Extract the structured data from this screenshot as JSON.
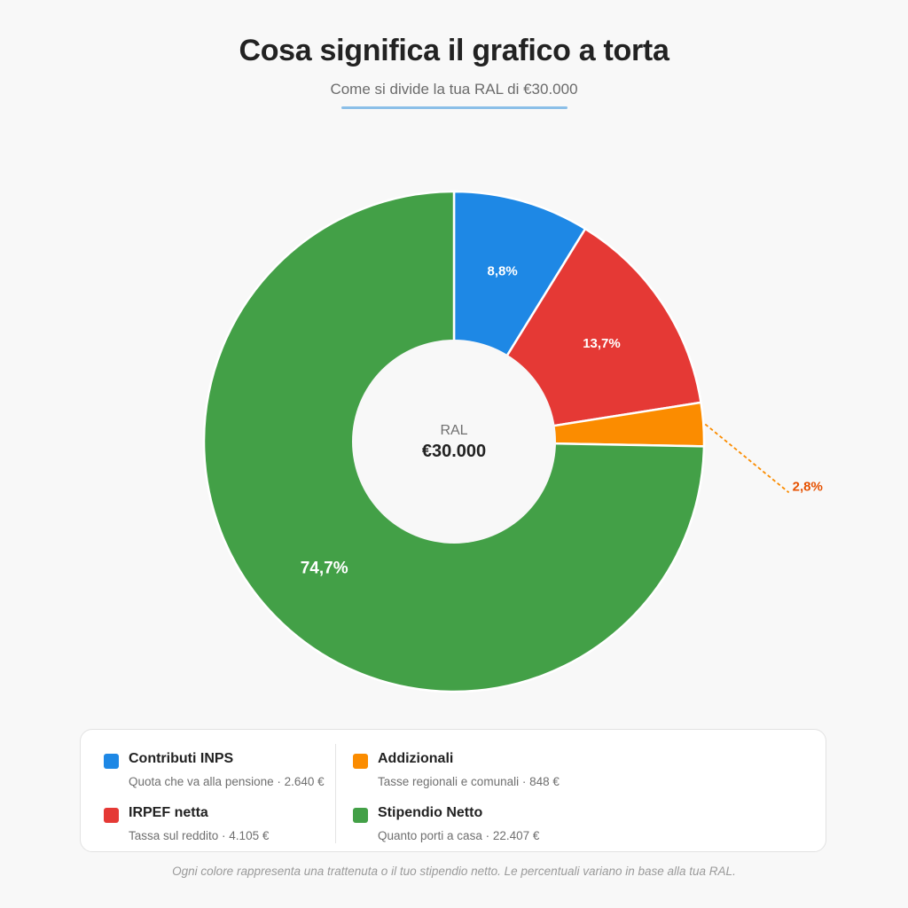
{
  "header": {
    "title": "Cosa significa il grafico a torta",
    "subtitle": "Come si divide la tua RAL di €30.000"
  },
  "center": {
    "label": "RAL",
    "value": "€30.000"
  },
  "chart_data": {
    "type": "pie",
    "donut": true,
    "title": "Cosa significa il grafico a torta",
    "subtitle": "Come si divide la tua RAL di €30.000",
    "categories": [
      "Contributi INPS",
      "IRPEF netta",
      "Addizionali",
      "Stipendio Netto"
    ],
    "values": [
      8.8,
      13.7,
      2.8,
      74.7
    ],
    "amounts": [
      2640,
      4105,
      848,
      22407
    ],
    "labels": [
      "8,8%",
      "13,7%",
      "2,8%",
      "74,7%"
    ],
    "colors": [
      "#1e88e5",
      "#e53935",
      "#fb8c00",
      "#43a047"
    ],
    "outside_label_color": "#e65100",
    "legend_position": "bottom"
  },
  "legend": {
    "items": [
      {
        "name": "Contributi INPS",
        "desc": "Quota che va alla pensione · 2.640 €",
        "color": "#1e88e5"
      },
      {
        "name": "IRPEF netta",
        "desc": "Tassa sul reddito · 4.105 €",
        "color": "#e53935"
      },
      {
        "name": "Addizionali",
        "desc": "Tasse regionali e comunali · 848 €",
        "color": "#fb8c00"
      },
      {
        "name": "Stipendio Netto",
        "desc": "Quanto porti a casa · 22.407 €",
        "color": "#43a047"
      }
    ]
  },
  "footnote": "Ogni colore rappresenta una trattenuta o il tuo stipendio netto. Le percentuali variano in base alla tua RAL."
}
